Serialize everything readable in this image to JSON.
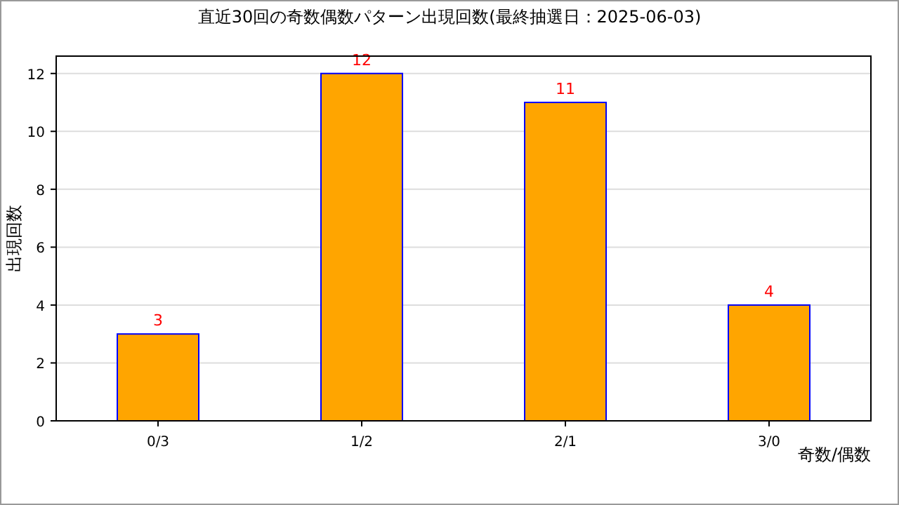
{
  "chart_data": {
    "type": "bar",
    "title": "直近30回の奇数偶数パターン出現回数(最終抽選日：2025-06-03)",
    "xlabel": "奇数/偶数",
    "ylabel": "出現回数",
    "categories": [
      "0/3",
      "1/2",
      "2/1",
      "3/0"
    ],
    "values": [
      3,
      12,
      11,
      4
    ],
    "color": "#ffa500",
    "ylim": [
      0,
      12.6
    ],
    "yticks": [
      0,
      2,
      4,
      6,
      8,
      10,
      12
    ],
    "grid": "y",
    "data_labels": true
  }
}
